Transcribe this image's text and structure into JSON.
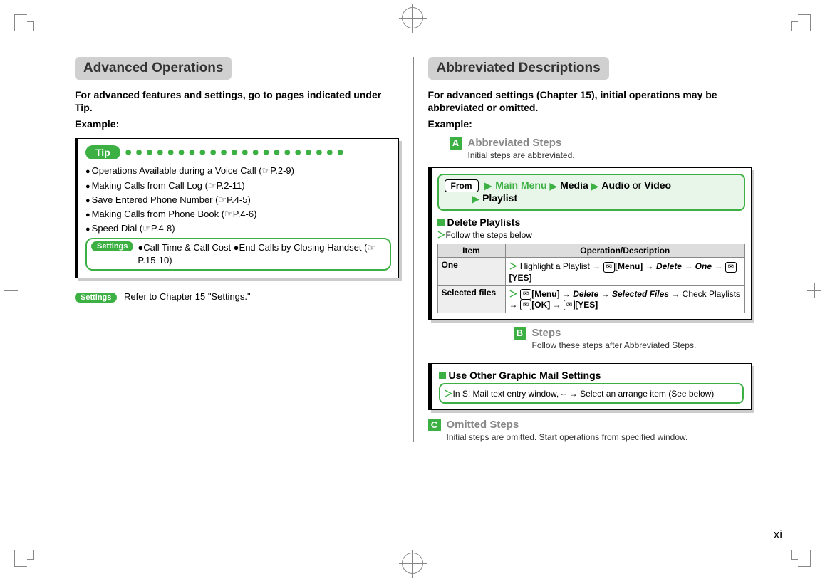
{
  "colors": {
    "accent": "#3cb043",
    "header_bg": "#d0d0d0",
    "shadow": "#cccccc",
    "muted": "#888888"
  },
  "page_number": "xi",
  "left": {
    "heading": "Advanced Operations",
    "lead": "For advanced features and settings, go to pages indicated under Tip.",
    "example": "Example:",
    "tip_label": "Tip",
    "tip_items": [
      "Operations Available during a Voice Call (☞P.2-9)",
      "Making Calls from Call Log (☞P.2-11)",
      "Save Entered Phone Number (☞P.4-5)",
      "Making Calls from Phone Book (☞P.4-6)",
      "Speed Dial (☞P.4-8)"
    ],
    "settings_pill": "Settings",
    "settings_text": "●Call Time & Call Cost ●End Calls by Closing Handset (☞P.15-10)",
    "settings_note": "Refer to Chapter 15 \"Settings.\""
  },
  "right": {
    "heading": "Abbreviated Descriptions",
    "lead": "For advanced settings (Chapter 15), initial operations may be abbreviated or omitted.",
    "example": "Example:",
    "callout_a": {
      "letter": "A",
      "title": "Abbreviated Steps",
      "sub": "Initial steps are abbreviated."
    },
    "from_label": "From",
    "from_path": [
      "Main Menu",
      "Media",
      "Audio",
      "Video",
      "Playlist"
    ],
    "from_or": "or",
    "section_title": "Delete Playlists",
    "follow": "Follow the steps below",
    "table": {
      "headers": [
        "Item",
        "Operation/Description"
      ],
      "rows": [
        {
          "item": "One",
          "op_html": "Highlight a Playlist → <span class='key'>✉</span><b>[Menu]</b> → <b><i>Delete</i></b> → <b><i>One</i></b> → <span class='key'>✉</span><b>[YES]</b>"
        },
        {
          "item": "Selected files",
          "op_html": "<span class='key'>✉</span><b>[Menu]</b> → <b><i>Delete</i></b> → <b><i>Selected Files</i></b> → Check Playlists → <span class='key'>✉</span><b>[OK]</b> → <span class='key'>✉</span><b>[YES]</b>"
        }
      ]
    },
    "callout_b": {
      "letter": "B",
      "title": "Steps",
      "sub": "Follow these steps after Abbreviated Steps."
    },
    "gmail_title": "Use Other Graphic Mail Settings",
    "gmail_text": "In S! Mail text entry window, ⌢ → Select an arrange item (See below)",
    "callout_c": {
      "letter": "C",
      "title": "Omitted Steps",
      "sub": "Initial steps are omitted. Start operations from specified window."
    }
  }
}
